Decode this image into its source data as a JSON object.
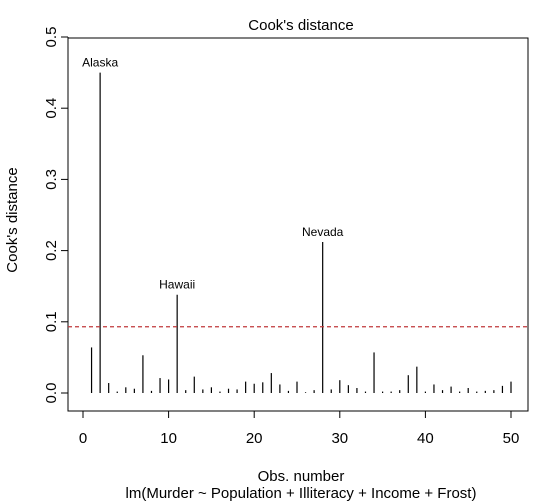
{
  "chart_data": {
    "type": "needle",
    "title": "Cook's distance",
    "xlabel": "Obs. number",
    "subtitle": "lm(Murder ~ Population + Illiteracy + Income + Frost)",
    "ylabel": "Cook's distance",
    "xlim": [
      0,
      51
    ],
    "ylim": [
      0,
      0.5
    ],
    "x_ticks": [
      0,
      10,
      20,
      30,
      40,
      50
    ],
    "y_ticks": [
      0.0,
      0.1,
      0.2,
      0.3,
      0.4,
      0.5
    ],
    "y_tick_labels": [
      "0.0",
      "0.1",
      "0.2",
      "0.3",
      "0.4",
      "0.5"
    ],
    "threshold": 0.093,
    "threshold_color": "#c0393b",
    "x": [
      1,
      2,
      3,
      4,
      5,
      6,
      7,
      8,
      9,
      10,
      11,
      12,
      13,
      14,
      15,
      16,
      17,
      18,
      19,
      20,
      21,
      22,
      23,
      24,
      25,
      26,
      27,
      28,
      29,
      30,
      31,
      32,
      33,
      34,
      35,
      36,
      37,
      38,
      39,
      40,
      41,
      42,
      43,
      44,
      45,
      46,
      47,
      48,
      49,
      50
    ],
    "values": [
      0.064,
      0.45,
      0.014,
      0.002,
      0.008,
      0.006,
      0.053,
      0.003,
      0.021,
      0.019,
      0.138,
      0.004,
      0.023,
      0.005,
      0.008,
      0.002,
      0.006,
      0.005,
      0.016,
      0.013,
      0.015,
      0.028,
      0.012,
      0.003,
      0.016,
      0.001,
      0.004,
      0.212,
      0.005,
      0.018,
      0.011,
      0.007,
      0.002,
      0.057,
      0.002,
      0.002,
      0.004,
      0.025,
      0.037,
      0.002,
      0.012,
      0.004,
      0.009,
      0.002,
      0.007,
      0.002,
      0.003,
      0.004,
      0.01,
      0.016
    ],
    "annotations": [
      {
        "x": 2,
        "label": "Alaska"
      },
      {
        "x": 11,
        "label": "Hawaii"
      },
      {
        "x": 28,
        "label": "Nevada"
      }
    ]
  }
}
